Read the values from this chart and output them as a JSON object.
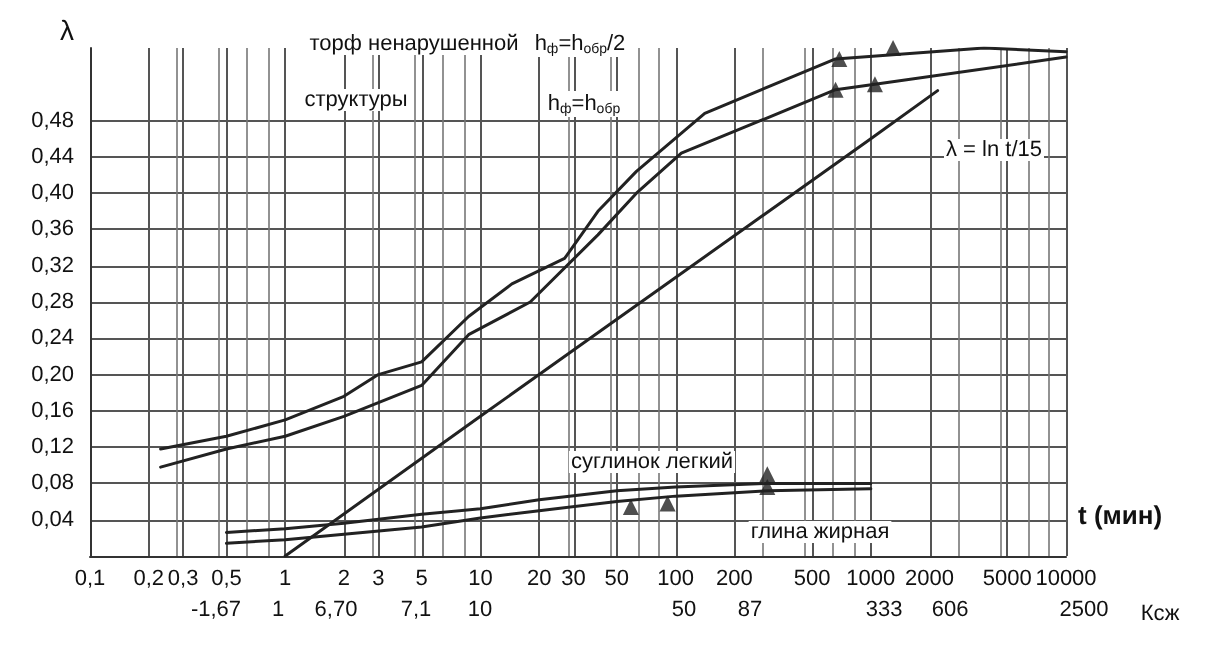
{
  "chart_data": {
    "type": "line",
    "ylabel": "λ",
    "xlabel": "t (мин)",
    "log": "x",
    "grid": true,
    "marker": "none",
    "line_style": "solid",
    "xlim": [
      0.1,
      10000
    ],
    "ylim": [
      0,
      0.56
    ],
    "xticks": [
      {
        "value": 0.1,
        "label": "0,1"
      },
      {
        "value": 0.2,
        "label": "0,2"
      },
      {
        "value": 0.3,
        "label": "0,3"
      },
      {
        "value": 0.5,
        "label": "0,5"
      },
      1,
      2,
      3,
      5,
      10,
      20,
      30,
      50,
      100,
      200,
      500,
      1000,
      2000,
      5000,
      10000
    ],
    "yticks": [
      {
        "value": 0.04,
        "label": "0,04"
      },
      {
        "value": 0.08,
        "label": "0,08"
      },
      {
        "value": 0.12,
        "label": "0,12"
      },
      {
        "value": 0.16,
        "label": "0,16"
      },
      {
        "value": 0.2,
        "label": "0,20"
      },
      {
        "value": 0.24,
        "label": "0,24"
      },
      {
        "value": 0.28,
        "label": "0,28"
      },
      {
        "value": 0.32,
        "label": "0,32"
      },
      {
        "value": 0.36,
        "label": "0,36"
      },
      {
        "value": 0.4,
        "label": "0,40"
      },
      {
        "value": 0.44,
        "label": "0,44"
      },
      {
        "value": 0.48,
        "label": "0,48"
      }
    ],
    "series": [
      {
        "color": "#222222",
        "x": [
          0.23,
          0.5,
          1,
          2,
          3,
          5,
          8.7,
          14.5,
          27,
          40,
          63,
          141,
          660,
          3800,
          10000
        ],
        "values": [
          0.118,
          0.132,
          0.15,
          0.176,
          0.2,
          0.214,
          0.264,
          0.3,
          0.328,
          0.38,
          0.424,
          0.488,
          0.548,
          0.56,
          0.556
        ]
      },
      {
        "color": "#222222",
        "x": [
          0.23,
          0.5,
          1,
          2,
          5,
          8.7,
          18,
          40,
          63,
          107,
          660,
          1050,
          10000
        ],
        "values": [
          0.098,
          0.118,
          0.132,
          0.154,
          0.188,
          0.244,
          0.28,
          0.354,
          0.4,
          0.444,
          0.514,
          0.52,
          0.55
        ]
      },
      {
        "color": "#222222",
        "x": [
          1,
          10,
          100,
          1000,
          2200
        ],
        "values": [
          0,
          0.154,
          0.307,
          0.46,
          0.513
        ]
      },
      {
        "color": "#222222",
        "x": [
          0.5,
          1,
          2,
          5,
          10,
          20,
          50,
          100,
          300,
          1000
        ],
        "values": [
          0.026,
          0.03,
          0.036,
          0.046,
          0.052,
          0.062,
          0.072,
          0.076,
          0.08,
          0.08
        ]
      },
      {
        "color": "#222222",
        "x": [
          0.5,
          1,
          2,
          5,
          10,
          20,
          50,
          100,
          300,
          1000
        ],
        "values": [
          0.014,
          0.018,
          0.024,
          0.032,
          0.042,
          0.05,
          0.06,
          0.066,
          0.072,
          0.074
        ]
      },
      {
        "type": "scatter",
        "marker": "triangle",
        "color": "#222222",
        "x": [
          690,
          1300,
          660,
          1050,
          59,
          91,
          295,
          295
        ],
        "values": [
          0.548,
          0.56,
          0.514,
          0.52,
          0.054,
          0.058,
          0.09,
          0.076
        ]
      }
    ],
    "annotations": [
      "торф ненарушенной",
      "структуры",
      "h$_{ф}$=h$_{обр}$/2",
      "h$_{ф}$=h$_{обр}$",
      "λ = ln t/15",
      "суглинок легкий",
      "глина жирная",
      "-1,67",
      "1",
      "6,70",
      "7,1",
      "10",
      "50",
      "87",
      "333",
      "606",
      "2500",
      "Ксж"
    ]
  }
}
